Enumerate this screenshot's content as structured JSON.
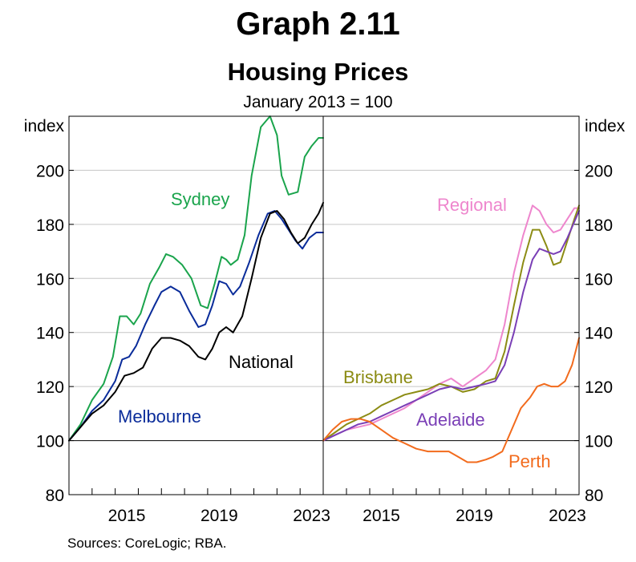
{
  "header": {
    "graph_label": "Graph 2.11",
    "title": "Housing Prices",
    "subtitle": "January 2013 = 100"
  },
  "footer": {
    "sources": "Sources: CoreLogic; RBA."
  },
  "chart_data": {
    "type": "line",
    "title": "Housing Prices",
    "subtitle": "January 2013 = 100",
    "y_unit_label": "index",
    "ylim": [
      80,
      220
    ],
    "yticks": [
      80,
      100,
      120,
      140,
      160,
      180,
      200
    ],
    "xlim": [
      2013.0,
      2024.0
    ],
    "xticks_major": [
      2015,
      2019,
      2023
    ],
    "xticks_minor": [
      2014,
      2015,
      2016,
      2017,
      2018,
      2019,
      2020,
      2021,
      2022,
      2023
    ],
    "grid": true,
    "panels": [
      {
        "id": "left",
        "series": [
          {
            "name": "Sydney",
            "color": "#1aa44c",
            "label": "Sydney",
            "x": [
              2013.0,
              2013.5,
              2014.0,
              2014.5,
              2014.9,
              2015.2,
              2015.5,
              2015.8,
              2016.1,
              2016.5,
              2016.9,
              2017.2,
              2017.5,
              2017.9,
              2018.3,
              2018.7,
              2019.0,
              2019.3,
              2019.6,
              2019.8,
              2020.0,
              2020.3,
              2020.6,
              2020.9,
              2021.3,
              2021.7,
              2022.0,
              2022.2,
              2022.5,
              2022.9,
              2023.2,
              2023.5,
              2023.8,
              2024.0
            ],
            "y": [
              100,
              106,
              115,
              121,
              131,
              146,
              146,
              143,
              147,
              158,
              164,
              169,
              168,
              165,
              160,
              150,
              149,
              158,
              168,
              167,
              165,
              167,
              176,
              198,
              216,
              220,
              213,
              198,
              191,
              192,
              205,
              209,
              212,
              212
            ]
          },
          {
            "name": "Melbourne",
            "color": "#0a2c9a",
            "label": "Melbourne",
            "x": [
              2013.0,
              2013.5,
              2014.0,
              2014.5,
              2015.0,
              2015.3,
              2015.6,
              2015.9,
              2016.3,
              2016.7,
              2017.0,
              2017.4,
              2017.8,
              2018.2,
              2018.6,
              2018.9,
              2019.2,
              2019.5,
              2019.8,
              2020.1,
              2020.4,
              2020.8,
              2021.2,
              2021.6,
              2021.9,
              2022.2,
              2022.5,
              2022.8,
              2023.1,
              2023.4,
              2023.7,
              2024.0
            ],
            "y": [
              100,
              105,
              111,
              115,
              122,
              130,
              131,
              135,
              143,
              150,
              155,
              157,
              155,
              148,
              142,
              143,
              150,
              159,
              158,
              154,
              157,
              166,
              176,
              184,
              185,
              182,
              178,
              174,
              171,
              175,
              177,
              177
            ]
          },
          {
            "name": "National",
            "color": "#000000",
            "label": "National",
            "x": [
              2013.0,
              2013.5,
              2014.0,
              2014.5,
              2015.0,
              2015.4,
              2015.8,
              2016.2,
              2016.6,
              2017.0,
              2017.4,
              2017.8,
              2018.2,
              2018.6,
              2018.9,
              2019.2,
              2019.5,
              2019.8,
              2020.1,
              2020.5,
              2020.9,
              2021.3,
              2021.7,
              2022.0,
              2022.3,
              2022.6,
              2022.9,
              2023.2,
              2023.5,
              2023.8,
              2024.0
            ],
            "y": [
              100,
              105,
              110,
              113,
              118,
              124,
              125,
              127,
              134,
              138,
              138,
              137,
              135,
              131,
              130,
              134,
              140,
              142,
              140,
              146,
              160,
              175,
              184,
              185,
              182,
              177,
              173,
              175,
              180,
              184,
              188
            ]
          }
        ],
        "labels": [
          {
            "series": "Sydney",
            "text": "Sydney"
          },
          {
            "series": "National",
            "text": "National"
          },
          {
            "series": "Melbourne",
            "text": "Melbourne"
          }
        ]
      },
      {
        "id": "right",
        "series": [
          {
            "name": "Regional",
            "color": "#ee86cd",
            "label": "Regional",
            "x": [
              2013.0,
              2013.5,
              2014.0,
              2014.5,
              2015.0,
              2015.5,
              2016.0,
              2016.5,
              2017.0,
              2017.5,
              2018.0,
              2018.5,
              2019.0,
              2019.5,
              2020.0,
              2020.4,
              2020.8,
              2021.2,
              2021.6,
              2022.0,
              2022.3,
              2022.6,
              2022.9,
              2023.2,
              2023.5,
              2023.8,
              2024.0
            ],
            "y": [
              100,
              102,
              104,
              105,
              106,
              108,
              110,
              112,
              115,
              118,
              121,
              123,
              120,
              123,
              126,
              130,
              143,
              162,
              176,
              187,
              185,
              180,
              177,
              178,
              182,
              186,
              186
            ]
          },
          {
            "name": "Brisbane",
            "color": "#8c8c14",
            "label": "Brisbane",
            "x": [
              2013.0,
              2013.5,
              2014.0,
              2014.5,
              2015.0,
              2015.5,
              2016.0,
              2016.5,
              2017.0,
              2017.5,
              2018.0,
              2018.5,
              2019.0,
              2019.5,
              2020.0,
              2020.4,
              2020.8,
              2021.2,
              2021.6,
              2022.0,
              2022.3,
              2022.6,
              2022.9,
              2023.2,
              2023.5,
              2023.8,
              2024.0
            ],
            "y": [
              100,
              103,
              106,
              108,
              110,
              113,
              115,
              117,
              118,
              119,
              121,
              120,
              118,
              119,
              122,
              123,
              133,
              150,
              166,
              178,
              178,
              172,
              165,
              166,
              174,
              182,
              187
            ]
          },
          {
            "name": "Adelaide",
            "color": "#7a3fb6",
            "label": "Adelaide",
            "x": [
              2013.0,
              2013.5,
              2014.0,
              2014.5,
              2015.0,
              2015.5,
              2016.0,
              2016.5,
              2017.0,
              2017.5,
              2018.0,
              2018.5,
              2019.0,
              2019.5,
              2020.0,
              2020.4,
              2020.8,
              2021.2,
              2021.6,
              2022.0,
              2022.3,
              2022.6,
              2022.9,
              2023.2,
              2023.5,
              2023.8,
              2024.0
            ],
            "y": [
              100,
              102,
              104,
              106,
              107,
              109,
              111,
              113,
              115,
              117,
              119,
              120,
              119,
              120,
              121,
              122,
              128,
              140,
              155,
              167,
              171,
              170,
              169,
              170,
              175,
              181,
              185
            ]
          },
          {
            "name": "Perth",
            "color": "#f26b1d",
            "label": "Perth",
            "x": [
              2013.0,
              2013.4,
              2013.8,
              2014.2,
              2014.6,
              2015.0,
              2015.5,
              2016.0,
              2016.5,
              2017.0,
              2017.5,
              2018.0,
              2018.4,
              2018.8,
              2019.2,
              2019.6,
              2020.0,
              2020.3,
              2020.7,
              2021.1,
              2021.5,
              2021.9,
              2022.2,
              2022.5,
              2022.8,
              2023.1,
              2023.4,
              2023.7,
              2024.0
            ],
            "y": [
              100,
              104,
              107,
              108,
              108,
              107,
              104,
              101,
              99,
              97,
              96,
              96,
              96,
              94,
              92,
              92,
              93,
              94,
              96,
              104,
              112,
              116,
              120,
              121,
              120,
              120,
              122,
              128,
              138
            ]
          }
        ],
        "labels": [
          {
            "series": "Regional",
            "text": "Regional"
          },
          {
            "series": "Brisbane",
            "text": "Brisbane"
          },
          {
            "series": "Adelaide",
            "text": "Adelaide"
          },
          {
            "series": "Perth",
            "text": "Perth"
          }
        ]
      }
    ]
  }
}
